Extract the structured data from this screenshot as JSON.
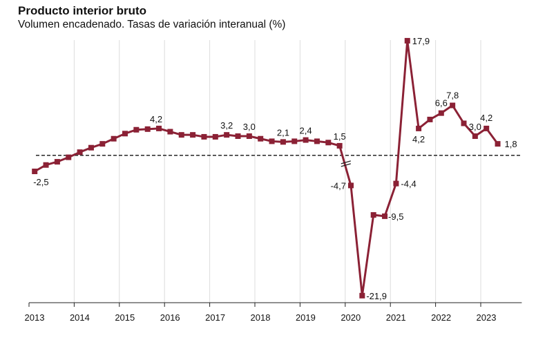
{
  "chart_data": {
    "type": "line",
    "title": "Producto interior bruto",
    "subtitle": "Volumen encadenado. Tasas de variación interanual (%)",
    "xlabel": "",
    "ylabel": "",
    "ylim": [
      -23,
      18
    ],
    "grid": true,
    "baseline": 0,
    "color": "#8b2135",
    "x_years": [
      "2013",
      "2014",
      "2015",
      "2016",
      "2017",
      "2018",
      "2019",
      "2020",
      "2021",
      "2022",
      "2023"
    ],
    "series": [
      {
        "x": [
          "2013 T1",
          "2013 T2",
          "2013 T3",
          "2013 T4",
          "2014 T1",
          "2014 T2",
          "2014 T3",
          "2014 T4",
          "2015 T1",
          "2015 T2",
          "2015 T3",
          "2015 T4",
          "2016 T1",
          "2016 T2",
          "2016 T3",
          "2016 T4",
          "2017 T1",
          "2017 T2",
          "2017 T3",
          "2017 T4",
          "2018 T1",
          "2018 T2",
          "2018 T3",
          "2018 T4",
          "2019 T1",
          "2019 T2",
          "2019 T3",
          "2019 T4",
          "2020 T1",
          "2020 T2",
          "2020 T3",
          "2020 T4",
          "2021 T1",
          "2021 T2",
          "2021 T3",
          "2021 T4",
          "2022 T1",
          "2022 T2",
          "2022 T3",
          "2022 T4",
          "2023 T1",
          "2023 T2"
        ],
        "values": [
          -2.5,
          -1.5,
          -1.0,
          -0.3,
          0.5,
          1.2,
          1.8,
          2.6,
          3.4,
          4.0,
          4.1,
          4.2,
          3.7,
          3.2,
          3.2,
          2.9,
          2.9,
          3.2,
          3.0,
          3.0,
          2.6,
          2.2,
          2.1,
          2.2,
          2.4,
          2.2,
          2.0,
          1.5,
          -4.7,
          -21.9,
          -9.3,
          -9.5,
          -4.4,
          17.9,
          4.2,
          5.6,
          6.6,
          7.8,
          5.0,
          3.0,
          4.2,
          1.8
        ]
      }
    ],
    "point_labels": [
      {
        "index": 0,
        "text": "-2,5"
      },
      {
        "index": 11,
        "text": "4,2"
      },
      {
        "index": 17,
        "text": "3,2"
      },
      {
        "index": 19,
        "text": "3,0"
      },
      {
        "index": 22,
        "text": "2,1"
      },
      {
        "index": 24,
        "text": "2,4"
      },
      {
        "index": 27,
        "text": "1,5"
      },
      {
        "index": 28,
        "text": "-4,7"
      },
      {
        "index": 29,
        "text": "-21,9"
      },
      {
        "index": 31,
        "text": "-9,5"
      },
      {
        "index": 32,
        "text": "-4,4"
      },
      {
        "index": 33,
        "text": "17,9"
      },
      {
        "index": 34,
        "text": "4,2"
      },
      {
        "index": 36,
        "text": "6,6"
      },
      {
        "index": 37,
        "text": "7,8"
      },
      {
        "index": 39,
        "text": "3,0"
      },
      {
        "index": 40,
        "text": "4,2"
      },
      {
        "index": 41,
        "text": "1,8"
      }
    ]
  }
}
